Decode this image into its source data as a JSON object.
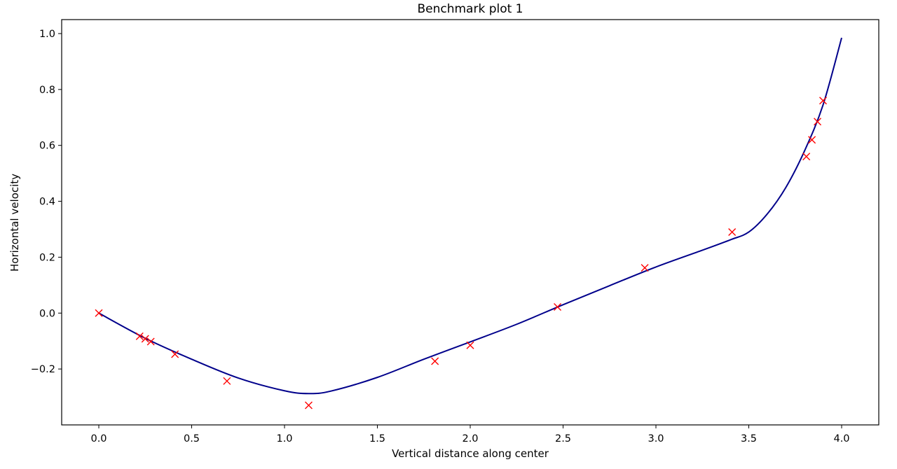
{
  "chart_data": {
    "type": "line",
    "title": "Benchmark plot 1",
    "xlabel": "Vertical distance along center",
    "ylabel": "Horizontal velocity",
    "xlim": [
      -0.2,
      4.2
    ],
    "ylim": [
      -0.4,
      1.05
    ],
    "xticks": [
      "0.0",
      "0.5",
      "1.0",
      "1.5",
      "2.0",
      "2.5",
      "3.0",
      "3.5",
      "4.0"
    ],
    "xtick_values": [
      0.0,
      0.5,
      1.0,
      1.5,
      2.0,
      2.5,
      3.0,
      3.5,
      4.0
    ],
    "yticks": [
      "−0.2",
      "0.0",
      "0.2",
      "0.4",
      "0.6",
      "0.8",
      "1.0"
    ],
    "ytick_values": [
      -0.2,
      0.0,
      0.2,
      0.4,
      0.6,
      0.8,
      1.0
    ],
    "grid": false,
    "series": [
      {
        "style": "line",
        "color": "#00008b",
        "x": [
          0.0,
          0.25,
          0.5,
          0.75,
          1.0,
          1.13,
          1.25,
          1.5,
          1.75,
          2.0,
          2.25,
          2.5,
          2.75,
          3.0,
          3.25,
          3.4,
          3.5,
          3.6,
          3.7,
          3.8,
          3.9,
          4.0
        ],
        "y": [
          0.0,
          -0.09,
          -0.165,
          -0.232,
          -0.278,
          -0.288,
          -0.279,
          -0.23,
          -0.165,
          -0.103,
          -0.04,
          0.03,
          0.098,
          0.165,
          0.225,
          0.262,
          0.29,
          0.355,
          0.45,
          0.58,
          0.745,
          0.985
        ]
      },
      {
        "style": "marker-x",
        "color": "#ff0000",
        "x": [
          0.0,
          0.22,
          0.25,
          0.28,
          0.41,
          0.69,
          1.13,
          1.81,
          2.0,
          2.47,
          2.94,
          3.41,
          3.81,
          3.84,
          3.87,
          3.9
        ],
        "y": [
          0.0,
          -0.083,
          -0.092,
          -0.102,
          -0.147,
          -0.243,
          -0.33,
          -0.172,
          -0.115,
          0.022,
          0.162,
          0.29,
          0.56,
          0.62,
          0.685,
          0.76
        ]
      }
    ]
  }
}
